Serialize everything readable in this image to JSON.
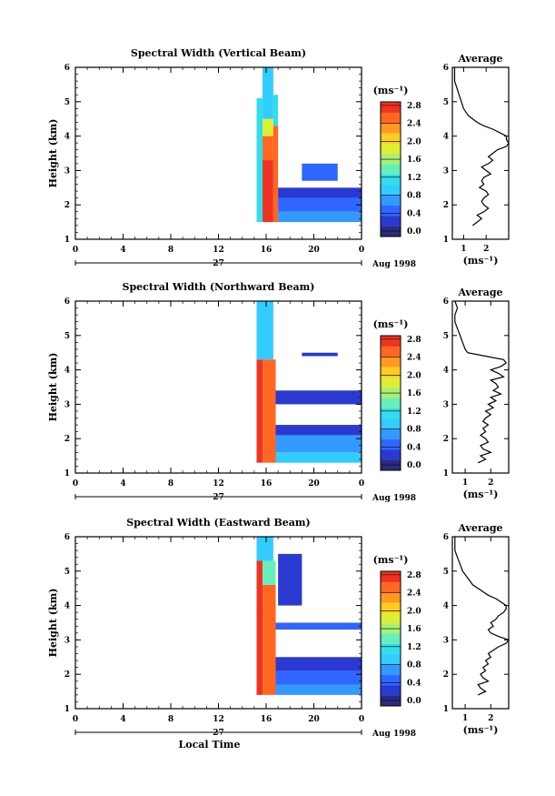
{
  "chart_data": [
    {
      "type": "heatmap",
      "panel": "vertical",
      "title": "Spectral Width (Vertical Beam)",
      "ylabel": "Height (km)",
      "xlabel": "",
      "x_ticks": [
        "0",
        "4",
        "8",
        "12",
        "16",
        "20",
        "0"
      ],
      "y_ticks": [
        "1",
        "2",
        "3",
        "4",
        "5",
        "6"
      ],
      "xlim": [
        0,
        24
      ],
      "ylim": [
        1,
        6
      ],
      "date_label": "27",
      "month_label": "Aug 1998",
      "colorbar": {
        "unit_label": "(ms⁻¹)",
        "ticks": [
          "0.0",
          "0.4",
          "0.8",
          "1.2",
          "1.6",
          "2.0",
          "2.4",
          "2.8"
        ],
        "range": [
          0,
          3.0
        ]
      },
      "data_regions": [
        {
          "t0": 15.2,
          "t1": 15.7,
          "h0": 1.5,
          "h1": 5.1,
          "value": 1.2
        },
        {
          "t0": 15.7,
          "t1": 16.6,
          "h0": 1.5,
          "h1": 3.3,
          "value": 2.8
        },
        {
          "t0": 15.7,
          "t1": 16.6,
          "h0": 3.3,
          "h1": 4.0,
          "value": 2.6
        },
        {
          "t0": 15.7,
          "t1": 16.6,
          "h0": 4.0,
          "h1": 4.5,
          "value": 1.9
        },
        {
          "t0": 15.7,
          "t1": 16.6,
          "h0": 4.5,
          "h1": 6.0,
          "value": 1.0
        },
        {
          "t0": 16.6,
          "t1": 17.0,
          "h0": 1.5,
          "h1": 4.3,
          "value": 2.7
        },
        {
          "t0": 16.6,
          "t1": 17.0,
          "h0": 4.3,
          "h1": 5.2,
          "value": 1.3
        },
        {
          "t0": 17.0,
          "t1": 24.0,
          "h0": 1.5,
          "h1": 1.8,
          "value": 0.9
        },
        {
          "t0": 17.0,
          "t1": 24.0,
          "h0": 1.8,
          "h1": 2.2,
          "value": 0.6
        },
        {
          "t0": 17.0,
          "t1": 24.0,
          "h0": 2.2,
          "h1": 2.5,
          "value": 0.4
        },
        {
          "t0": 19.0,
          "t1": 22.0,
          "h0": 2.7,
          "h1": 3.2,
          "value": 0.5
        }
      ],
      "profile": {
        "title": "Average",
        "xlabel": "(ms⁻¹)",
        "x_ticks": [
          "1",
          "2"
        ],
        "y_ticks": [
          "1",
          "2",
          "3",
          "4",
          "5",
          "6"
        ],
        "xlim": [
          0.5,
          3.0
        ],
        "ylim": [
          1,
          6
        ],
        "heights": [
          1.4,
          1.5,
          1.6,
          1.7,
          1.8,
          1.9,
          2.0,
          2.1,
          2.2,
          2.3,
          2.4,
          2.5,
          2.6,
          2.7,
          2.8,
          2.9,
          3.0,
          3.1,
          3.2,
          3.3,
          3.4,
          3.5,
          3.6,
          3.7,
          3.8,
          3.9,
          4.0,
          4.1,
          4.2,
          4.3,
          4.4,
          4.6,
          4.8,
          5.0,
          5.2,
          5.4,
          5.6,
          5.8,
          6.0
        ],
        "values": [
          1.4,
          1.6,
          1.8,
          1.6,
          1.9,
          2.1,
          1.9,
          1.8,
          1.9,
          2.1,
          2.0,
          1.7,
          1.9,
          1.8,
          1.9,
          2.2,
          2.0,
          1.8,
          2.1,
          2.3,
          2.1,
          2.3,
          2.5,
          2.9,
          3.0,
          2.9,
          2.9,
          2.6,
          2.3,
          1.9,
          1.6,
          1.2,
          1.0,
          0.9,
          0.8,
          0.7,
          0.6,
          0.6,
          0.6
        ]
      }
    },
    {
      "type": "heatmap",
      "panel": "northward",
      "title": "Spectral Width (Northward Beam)",
      "ylabel": "Height (km)",
      "xlabel": "",
      "x_ticks": [
        "0",
        "4",
        "8",
        "12",
        "16",
        "20",
        "0"
      ],
      "y_ticks": [
        "1",
        "2",
        "3",
        "4",
        "5",
        "6"
      ],
      "xlim": [
        0,
        24
      ],
      "ylim": [
        1,
        6
      ],
      "date_label": "27",
      "month_label": "Aug 1998",
      "colorbar": {
        "unit_label": "(ms⁻¹)",
        "ticks": [
          "0.0",
          "0.4",
          "0.8",
          "1.2",
          "1.6",
          "2.0",
          "2.4",
          "2.8"
        ],
        "range": [
          0,
          3.0
        ]
      },
      "data_regions": [
        {
          "t0": 15.2,
          "t1": 15.7,
          "h0": 1.3,
          "h1": 4.3,
          "value": 2.8
        },
        {
          "t0": 15.2,
          "t1": 16.6,
          "h0": 4.3,
          "h1": 6.0,
          "value": 1.1
        },
        {
          "t0": 15.7,
          "t1": 16.8,
          "h0": 1.3,
          "h1": 4.3,
          "value": 2.7
        },
        {
          "t0": 16.8,
          "t1": 24.0,
          "h0": 1.3,
          "h1": 1.6,
          "value": 1.0
        },
        {
          "t0": 16.8,
          "t1": 24.0,
          "h0": 1.6,
          "h1": 2.1,
          "value": 0.7
        },
        {
          "t0": 16.8,
          "t1": 24.0,
          "h0": 2.1,
          "h1": 2.4,
          "value": 0.4
        },
        {
          "t0": 16.8,
          "t1": 24.0,
          "h0": 3.0,
          "h1": 3.4,
          "value": 0.3
        },
        {
          "t0": 19.0,
          "t1": 22.0,
          "h0": 4.4,
          "h1": 4.5,
          "value": 0.4
        }
      ],
      "profile": {
        "title": "Average",
        "xlabel": "(ms⁻¹)",
        "x_ticks": [
          "1",
          "2"
        ],
        "y_ticks": [
          "1",
          "2",
          "3",
          "4",
          "5",
          "6"
        ],
        "xlim": [
          0.5,
          2.7
        ],
        "ylim": [
          1,
          6
        ],
        "heights": [
          1.3,
          1.4,
          1.5,
          1.6,
          1.7,
          1.8,
          1.9,
          2.0,
          2.1,
          2.2,
          2.3,
          2.4,
          2.5,
          2.6,
          2.7,
          2.8,
          2.9,
          3.0,
          3.1,
          3.2,
          3.3,
          3.4,
          3.5,
          3.6,
          3.7,
          3.8,
          3.9,
          4.0,
          4.1,
          4.2,
          4.3,
          4.4,
          4.5,
          4.6,
          4.8,
          5.0,
          5.2,
          5.4,
          5.6,
          5.8,
          6.0
        ],
        "values": [
          1.5,
          1.8,
          1.6,
          2.0,
          1.7,
          1.6,
          1.9,
          1.8,
          1.6,
          1.8,
          1.7,
          1.9,
          1.7,
          1.8,
          2.0,
          1.8,
          2.1,
          1.9,
          2.2,
          2.0,
          2.4,
          2.1,
          2.3,
          2.2,
          2.0,
          2.5,
          2.3,
          2.0,
          2.4,
          2.6,
          2.5,
          1.8,
          1.1,
          1.0,
          0.9,
          0.8,
          0.7,
          0.6,
          0.6,
          0.7,
          0.6
        ]
      }
    },
    {
      "type": "heatmap",
      "panel": "eastward",
      "title": "Spectral Width (Eastward Beam)",
      "ylabel": "Height (km)",
      "xlabel": "Local Time",
      "x_ticks": [
        "0",
        "4",
        "8",
        "12",
        "16",
        "20",
        "0"
      ],
      "y_ticks": [
        "1",
        "2",
        "3",
        "4",
        "5",
        "6"
      ],
      "xlim": [
        0,
        24
      ],
      "ylim": [
        1,
        6
      ],
      "date_label": "27",
      "month_label": "Aug 1998",
      "colorbar": {
        "unit_label": "(ms⁻¹)",
        "ticks": [
          "0.0",
          "0.4",
          "0.8",
          "1.2",
          "1.6",
          "2.0",
          "2.4",
          "2.8"
        ],
        "range": [
          0,
          3.0
        ]
      },
      "data_regions": [
        {
          "t0": 15.2,
          "t1": 15.7,
          "h0": 1.4,
          "h1": 5.3,
          "value": 2.8
        },
        {
          "t0": 15.2,
          "t1": 16.6,
          "h0": 5.3,
          "h1": 6.0,
          "value": 1.1
        },
        {
          "t0": 15.7,
          "t1": 16.8,
          "h0": 1.4,
          "h1": 4.6,
          "value": 2.7
        },
        {
          "t0": 15.7,
          "t1": 16.8,
          "h0": 4.6,
          "h1": 5.3,
          "value": 1.6
        },
        {
          "t0": 16.8,
          "t1": 24.0,
          "h0": 1.4,
          "h1": 1.7,
          "value": 0.9
        },
        {
          "t0": 16.8,
          "t1": 24.0,
          "h0": 1.7,
          "h1": 2.1,
          "value": 0.6
        },
        {
          "t0": 16.8,
          "t1": 24.0,
          "h0": 2.1,
          "h1": 2.5,
          "value": 0.4
        },
        {
          "t0": 16.8,
          "t1": 24.0,
          "h0": 3.3,
          "h1": 3.5,
          "value": 0.5
        },
        {
          "t0": 17.0,
          "t1": 19.0,
          "h0": 4.0,
          "h1": 5.5,
          "value": 0.4
        }
      ],
      "profile": {
        "title": "Average",
        "xlabel": "(ms⁻¹)",
        "x_ticks": [
          "1",
          "2"
        ],
        "y_ticks": [
          "1",
          "2",
          "3",
          "4",
          "5",
          "6"
        ],
        "xlim": [
          0.5,
          2.7
        ],
        "ylim": [
          1,
          6
        ],
        "heights": [
          1.4,
          1.5,
          1.6,
          1.7,
          1.8,
          1.9,
          2.0,
          2.1,
          2.2,
          2.3,
          2.4,
          2.5,
          2.6,
          2.7,
          2.8,
          2.9,
          3.0,
          3.1,
          3.2,
          3.3,
          3.4,
          3.5,
          3.6,
          3.7,
          3.8,
          3.9,
          4.0,
          4.1,
          4.2,
          4.3,
          4.4,
          4.6,
          4.8,
          5.0,
          5.2,
          5.4,
          5.6,
          5.8,
          6.0
        ],
        "values": [
          1.5,
          1.8,
          1.6,
          1.5,
          1.9,
          1.7,
          1.6,
          1.8,
          1.7,
          1.9,
          1.8,
          2.0,
          1.9,
          2.1,
          2.3,
          2.6,
          2.7,
          2.3,
          2.0,
          1.9,
          2.1,
          2.0,
          2.2,
          2.3,
          2.5,
          2.6,
          2.6,
          2.4,
          2.2,
          1.9,
          1.7,
          1.3,
          1.1,
          0.9,
          0.8,
          0.7,
          0.6,
          0.6,
          0.6
        ]
      }
    }
  ]
}
